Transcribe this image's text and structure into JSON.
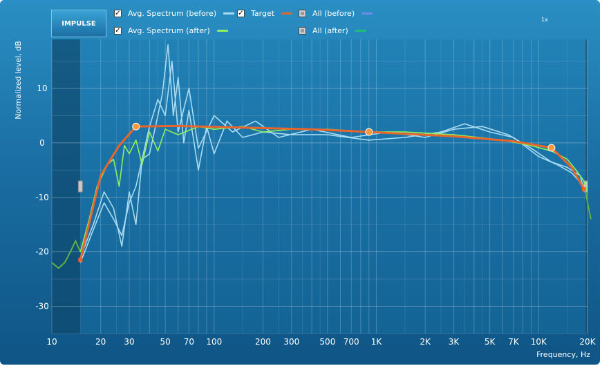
{
  "app": {
    "logo_text": "IMPULSE",
    "zoom_label": "1x"
  },
  "legend": [
    {
      "label": "Avg. Spectrum (before)",
      "checked": true,
      "color": "#a8dcf2"
    },
    {
      "label": "Avg. Spectrum (after)",
      "checked": true,
      "color": "#8ff25a"
    },
    {
      "label": "Target",
      "checked": true,
      "color": "#e8662c"
    },
    {
      "label": "All (before)",
      "checked": false,
      "color": "#6a8ee8"
    },
    {
      "label": "All (after)",
      "checked": false,
      "color": "#1fbf7a"
    }
  ],
  "chart_data": {
    "type": "line",
    "xlabel": "Frequency, Hz",
    "ylabel": "Normalized level, dB",
    "x_scale": "log",
    "xlim": [
      10,
      20000
    ],
    "ylim": [
      -35,
      19
    ],
    "x_ticks": [
      {
        "value": 10,
        "label": "10"
      },
      {
        "value": 20,
        "label": "20"
      },
      {
        "value": 30,
        "label": "30"
      },
      {
        "value": 50,
        "label": "50"
      },
      {
        "value": 70,
        "label": "70"
      },
      {
        "value": 100,
        "label": "100"
      },
      {
        "value": 200,
        "label": "200"
      },
      {
        "value": 300,
        "label": "300"
      },
      {
        "value": 500,
        "label": "500"
      },
      {
        "value": 700,
        "label": "700"
      },
      {
        "value": 1000,
        "label": "1K"
      },
      {
        "value": 2000,
        "label": "2K"
      },
      {
        "value": 3000,
        "label": "3K"
      },
      {
        "value": 5000,
        "label": "5K"
      },
      {
        "value": 7000,
        "label": "7K"
      },
      {
        "value": 10000,
        "label": "10K"
      },
      {
        "value": 20000,
        "label": "20K"
      }
    ],
    "y_ticks": [
      {
        "value": 10,
        "label": "10"
      },
      {
        "value": 0,
        "label": "0"
      },
      {
        "value": -10,
        "label": "-10"
      },
      {
        "value": -20,
        "label": "-20"
      },
      {
        "value": -30,
        "label": "-30"
      }
    ],
    "grid": true,
    "excluded_ranges": [
      [
        10,
        15
      ],
      [
        19500,
        20000
      ]
    ],
    "series": [
      {
        "name": "Target",
        "color": "#e8662c",
        "x": [
          15,
          20,
          26,
          33,
          60,
          150,
          400,
          900,
          3000,
          7000,
          12000,
          16000,
          19000
        ],
        "y": [
          -21.5,
          -6,
          -0.5,
          3,
          3.1,
          2.8,
          2.5,
          2,
          1.2,
          0.3,
          -0.9,
          -4.5,
          -8.5
        ],
        "control_points": [
          {
            "x": 33,
            "y": 3
          },
          {
            "x": 900,
            "y": 2
          },
          {
            "x": 12000,
            "y": -0.9
          }
        ]
      },
      {
        "name": "Avg. Spectrum (after)",
        "color": "#8ff25a",
        "x": [
          15,
          17,
          19,
          22,
          24,
          26,
          28,
          30,
          33,
          36,
          40,
          45,
          50,
          60,
          80,
          100,
          150,
          200,
          300,
          500,
          900,
          1500,
          3000,
          6000,
          9000,
          12000,
          15000,
          17000,
          19000,
          20000,
          21000
        ],
        "y": [
          -20,
          -14,
          -8,
          -4,
          -3,
          -8,
          -0.5,
          -2,
          0.5,
          -4,
          2,
          -1.5,
          2.5,
          1.5,
          3,
          2.5,
          3,
          2,
          2.5,
          2.5,
          2,
          2,
          1.5,
          0.5,
          -0.5,
          -1.5,
          -3,
          -5,
          -7,
          -9,
          -14
        ]
      },
      {
        "name": "Avg. Spectrum (before)",
        "color": "#a8dcf2",
        "x": [
          15,
          18,
          21,
          24,
          27,
          30,
          33,
          36,
          40,
          45,
          48,
          52,
          56,
          60,
          65,
          70,
          80,
          90,
          100,
          120,
          150,
          200,
          300,
          500,
          900,
          1500,
          2500,
          3500,
          5000,
          7000,
          10000,
          13000,
          16000,
          19000
        ],
        "y": [
          -22,
          -16,
          -11,
          -14,
          -17,
          -11,
          -8,
          -3,
          -2,
          5,
          9,
          18,
          5,
          12,
          0,
          6,
          -5,
          3,
          -2,
          4,
          1,
          2,
          1.5,
          1.5,
          0.5,
          1,
          2,
          3.5,
          2,
          1,
          -2.5,
          -4,
          -5.5,
          -8
        ]
      },
      {
        "name": "Avg. Spectrum (before) 2",
        "color": "#a8dcf2",
        "x": [
          15,
          18,
          21,
          24,
          27,
          30,
          33,
          36,
          40,
          45,
          50,
          55,
          60,
          70,
          80,
          100,
          130,
          180,
          250,
          400,
          700,
          1200,
          2000,
          3000,
          4500,
          6500,
          9000,
          12000,
          15000,
          18000,
          19000
        ],
        "y": [
          -21,
          -15,
          -9,
          -12,
          -19,
          -9,
          -15,
          -3,
          3,
          8,
          5,
          15,
          2,
          10,
          -1,
          5,
          2,
          4,
          1,
          2.5,
          1,
          2,
          1,
          2.5,
          3,
          1.5,
          -1,
          -3.5,
          -4.5,
          -6,
          -8.5
        ]
      }
    ],
    "outer_traces": [
      {
        "color": "#5fb04a",
        "x": [
          10,
          11,
          12,
          13,
          14,
          15
        ],
        "y": [
          -22,
          -23,
          -22,
          -20,
          -18,
          -20
        ]
      },
      {
        "color": "#5fb04a",
        "x": [
          19500,
          20000,
          21000
        ],
        "y": [
          -9,
          -11,
          -14
        ]
      }
    ]
  }
}
